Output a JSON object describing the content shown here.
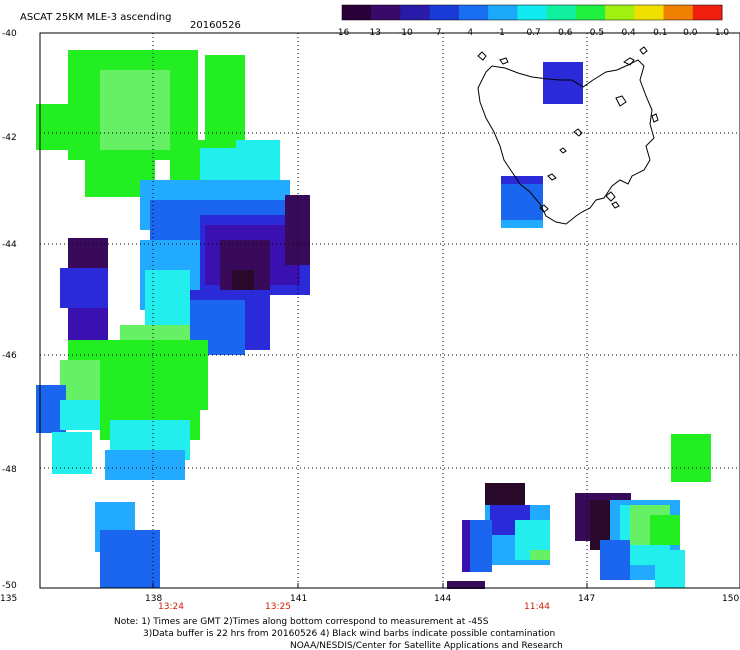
{
  "header": {
    "title": "ASCAT 25KM MLE-3 ascending",
    "date": "20160526"
  },
  "colorbar": {
    "labels": [
      "-16",
      "-13",
      "-10",
      "-7",
      "-4",
      "-1",
      "-0.7",
      "-0.6",
      "-0.5",
      "-0.4",
      "-0.1",
      "0.0",
      "1.0"
    ],
    "colors": [
      "#2a0038",
      "#3a0a6a",
      "#2a1aa8",
      "#1a3ad8",
      "#1a6ef0",
      "#1aaaf8",
      "#10eaf0",
      "#10f0a0",
      "#20f040",
      "#a0f010",
      "#f0e000",
      "#f08000",
      "#f02010"
    ]
  },
  "axes": {
    "lat_labels": [
      "-40",
      "-42",
      "-44",
      "-46",
      "-48",
      "-50"
    ],
    "lon_labels": [
      "135",
      "138",
      "141",
      "144",
      "147",
      "150"
    ]
  },
  "time_labels": [
    "13:24",
    "13:25",
    "11:44"
  ],
  "notes": [
    "Note: 1) Times are GMT 2)Times along bottom correspond to measurement at -45S",
    "3)Data buffer is 22 hrs from 20160526 4) Black wind barbs indicate possible contamination",
    "NOAA/NESDIS/Center for Satellite Applications and Research"
  ],
  "colors": {
    "green": "#22ee22",
    "light_green": "#66f066",
    "cyan": "#22eeee",
    "sky": "#22aaff",
    "blue": "#1a66ee",
    "deep_blue": "#2a2ad8",
    "violet": "#3a10b0",
    "dark_purple": "#3a0a5a",
    "black_purple": "#2a0a2a",
    "grid": "#000000",
    "coast": "#000000",
    "time_label": "#cc2200"
  }
}
